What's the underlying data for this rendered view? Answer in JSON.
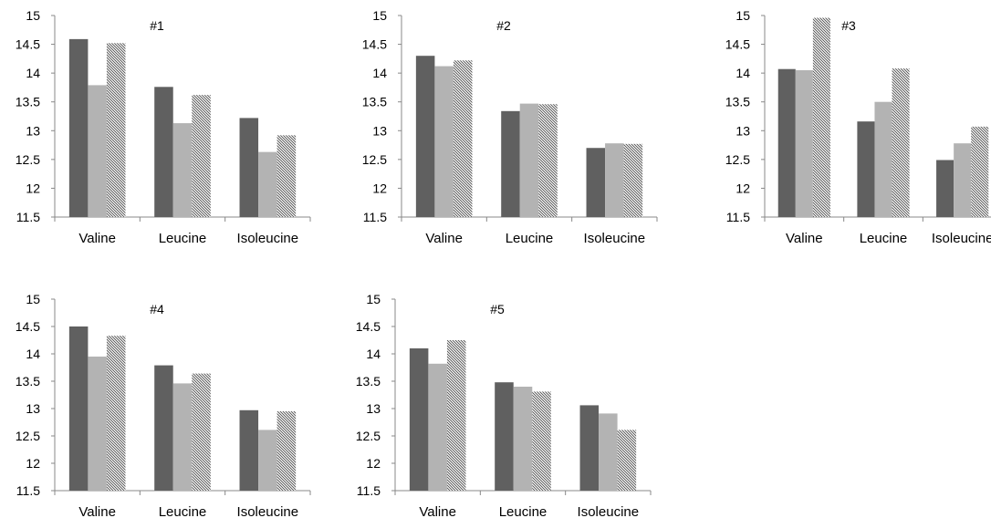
{
  "colors": {
    "series_a": "#606060",
    "series_b": "#b3b3b3",
    "series_c_stripe": "#4a4a4a",
    "axis": "#888888"
  },
  "chart_data": [
    {
      "type": "bar",
      "title": "#1",
      "categories": [
        "Valine",
        "Leucine",
        "Isoleucine"
      ],
      "ylim": [
        11.5,
        15
      ],
      "yticks": [
        "15",
        "14.5",
        "14",
        "13.5",
        "13",
        "12.5",
        "12",
        "11.5"
      ],
      "grid": false,
      "series": [
        {
          "pattern": "solid-dark",
          "values": [
            14.59,
            13.76,
            13.22
          ]
        },
        {
          "pattern": "solid-light",
          "values": [
            13.79,
            13.13,
            12.63
          ]
        },
        {
          "pattern": "diagonal-hatch",
          "values": [
            14.52,
            13.62,
            12.92
          ]
        }
      ]
    },
    {
      "type": "bar",
      "title": "#2",
      "categories": [
        "Valine",
        "Leucine",
        "Isoleucine"
      ],
      "ylim": [
        11.5,
        15
      ],
      "yticks": [
        "15",
        "14.5",
        "14",
        "13.5",
        "13",
        "12.5",
        "12",
        "11.5"
      ],
      "grid": false,
      "series": [
        {
          "pattern": "solid-dark",
          "values": [
            14.3,
            13.34,
            12.7
          ]
        },
        {
          "pattern": "solid-light",
          "values": [
            14.12,
            13.47,
            12.78
          ]
        },
        {
          "pattern": "diagonal-hatch",
          "values": [
            14.22,
            13.46,
            12.77
          ]
        }
      ]
    },
    {
      "type": "bar",
      "title": "#3",
      "categories": [
        "Valine",
        "Leucine",
        "Isoleucine"
      ],
      "ylim": [
        11.5,
        15
      ],
      "yticks": [
        "15",
        "14.5",
        "14",
        "13.5",
        "13",
        "12.5",
        "12",
        "11.5"
      ],
      "grid": false,
      "series": [
        {
          "pattern": "solid-dark",
          "values": [
            14.07,
            13.16,
            12.49
          ]
        },
        {
          "pattern": "solid-light",
          "values": [
            14.05,
            13.5,
            12.78
          ]
        },
        {
          "pattern": "diagonal-hatch",
          "values": [
            14.96,
            14.08,
            13.07
          ]
        }
      ]
    },
    {
      "type": "bar",
      "title": "#4",
      "categories": [
        "Valine",
        "Leucine",
        "Isoleucine"
      ],
      "ylim": [
        11.5,
        15
      ],
      "yticks": [
        "15",
        "14.5",
        "14",
        "13.5",
        "13",
        "12.5",
        "12",
        "11.5"
      ],
      "grid": false,
      "series": [
        {
          "pattern": "solid-dark",
          "values": [
            14.5,
            13.79,
            12.97
          ]
        },
        {
          "pattern": "solid-light",
          "values": [
            13.95,
            13.46,
            12.61
          ]
        },
        {
          "pattern": "diagonal-hatch",
          "values": [
            14.33,
            13.64,
            12.95
          ]
        }
      ]
    },
    {
      "type": "bar",
      "title": "#5",
      "categories": [
        "Valine",
        "Leucine",
        "Isoleucine"
      ],
      "ylim": [
        11.5,
        15
      ],
      "yticks": [
        "15",
        "14.5",
        "14",
        "13.5",
        "13",
        "12.5",
        "12",
        "11.5"
      ],
      "grid": false,
      "series": [
        {
          "pattern": "solid-dark",
          "values": [
            14.1,
            13.48,
            13.06
          ]
        },
        {
          "pattern": "solid-light",
          "values": [
            13.82,
            13.4,
            12.91
          ]
        },
        {
          "pattern": "diagonal-hatch",
          "values": [
            14.25,
            13.31,
            12.61
          ]
        }
      ]
    }
  ]
}
